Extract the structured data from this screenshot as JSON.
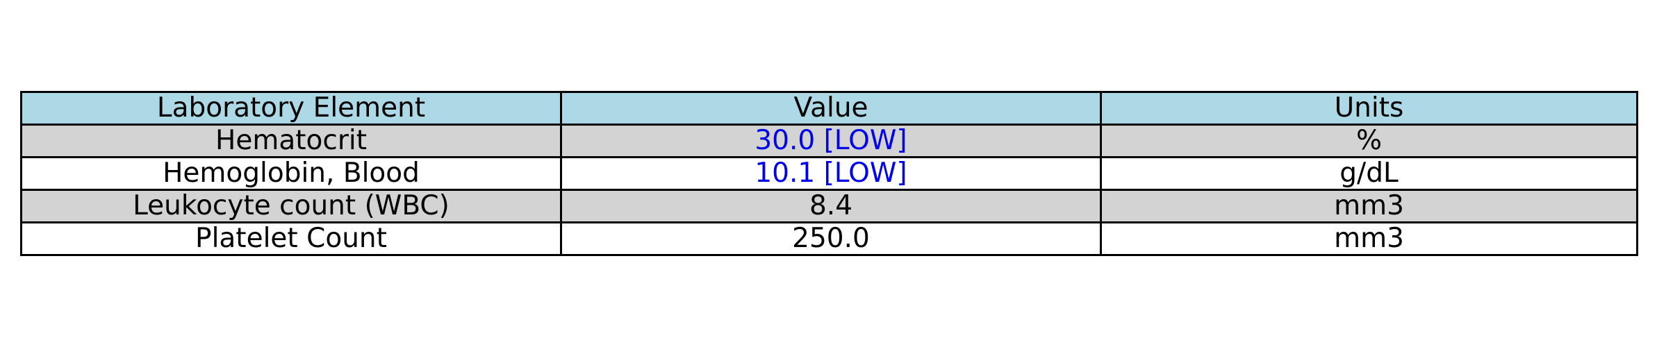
{
  "chart_data": {
    "type": "table",
    "columns": [
      "Laboratory Element",
      "Value",
      "Units"
    ],
    "rows": [
      {
        "element": "Hematocrit",
        "value": "30.0 [LOW]",
        "units": "%",
        "flag": "low"
      },
      {
        "element": "Hemoglobin, Blood",
        "value": "10.1 [LOW]",
        "units": "g/dL",
        "flag": "low"
      },
      {
        "element": "Leukocyte count (WBC)",
        "value": "8.4",
        "units": "mm3",
        "flag": ""
      },
      {
        "element": "Platelet Count",
        "value": "250.0",
        "units": "mm3",
        "flag": ""
      }
    ],
    "colors": {
      "header_bg": "#add8e6",
      "shaded_row_bg": "#d3d3d3",
      "plain_row_bg": "#ffffff",
      "low_flag_text": "#0000ee",
      "border": "#000000"
    }
  }
}
